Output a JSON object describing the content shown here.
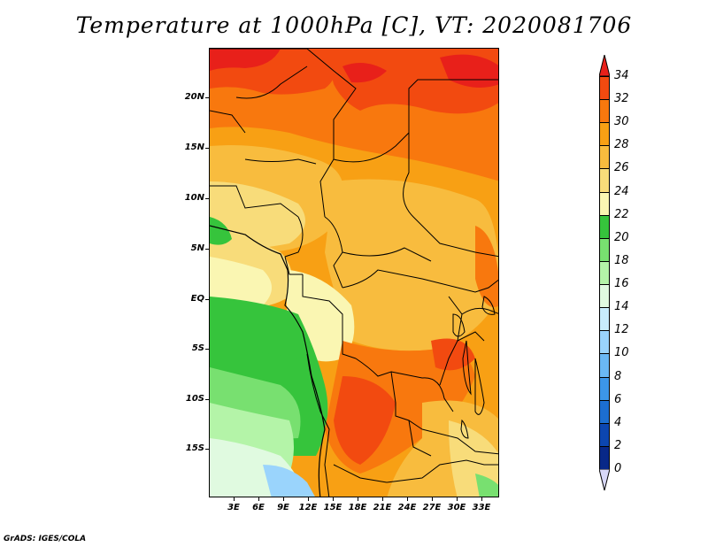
{
  "title": "Temperature at 1000hPa [C], VT: 2020081706",
  "footer": "GrADS: IGES/COLA",
  "map": {
    "lat_labels": [
      "20N",
      "15N",
      "10N",
      "5N",
      "EQ",
      "5S",
      "10S",
      "15S"
    ],
    "lon_labels": [
      "3E",
      "6E",
      "9E",
      "12E",
      "15E",
      "18E",
      "21E",
      "24E",
      "27E",
      "30E",
      "33E"
    ],
    "lat_range": [
      -20,
      24.5
    ],
    "lon_range": [
      0,
      35
    ],
    "variable": "Temperature at 1000hPa [C]",
    "valid_time": "2020081706"
  },
  "colorbar": {
    "labels": [
      "34",
      "32",
      "30",
      "28",
      "26",
      "24",
      "22",
      "20",
      "18",
      "16",
      "14",
      "12",
      "10",
      "8",
      "6",
      "4",
      "2",
      "0"
    ],
    "colors_top_to_bottom": [
      "#e8201a",
      "#f24a10",
      "#f8780e",
      "#f8a014",
      "#f8bc3e",
      "#f8dc7a",
      "#faf6b2",
      "#36c43c",
      "#78e070",
      "#b4f4a8",
      "#e0fae0",
      "#c8ecfc",
      "#9ad4fc",
      "#6ab8f4",
      "#3c96e8",
      "#1c6ed0",
      "#0c46b0",
      "#082888",
      "#0a0a5e"
    ],
    "above_max_color": "#e8201a",
    "below_min_color": "#d8d8f8"
  }
}
